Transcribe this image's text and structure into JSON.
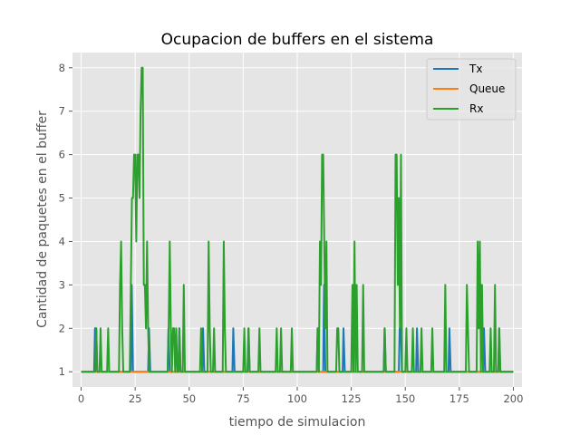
{
  "chart_data": {
    "type": "line",
    "title": "Ocupacion de buffers en el sistema",
    "xlabel": "tiempo de simulacion",
    "ylabel": "Cantidad de paquetes en el buffer",
    "xlim": [
      -4,
      204
    ],
    "ylim": [
      0.65,
      8.35
    ],
    "xticks": [
      0,
      25,
      50,
      75,
      100,
      125,
      150,
      175,
      200
    ],
    "yticks": [
      1,
      2,
      3,
      4,
      5,
      6,
      7,
      8
    ],
    "grid": true,
    "legend": "top-right",
    "series": [
      {
        "name": "Tx",
        "color": "#1f77b4",
        "points": [
          [
            0,
            1
          ],
          [
            6,
            1
          ],
          [
            6.4,
            2
          ],
          [
            7,
            2
          ],
          [
            7.4,
            1
          ],
          [
            23,
            1
          ],
          [
            23.4,
            3
          ],
          [
            24,
            1
          ],
          [
            31,
            1
          ],
          [
            31.4,
            2
          ],
          [
            32,
            1
          ],
          [
            40,
            1
          ],
          [
            40.4,
            2
          ],
          [
            41,
            1
          ],
          [
            45,
            1
          ],
          [
            45.4,
            2
          ],
          [
            46,
            1
          ],
          [
            56,
            1
          ],
          [
            56.4,
            2
          ],
          [
            57,
            1
          ],
          [
            70,
            1
          ],
          [
            70.4,
            2
          ],
          [
            71,
            1
          ],
          [
            77,
            1
          ],
          [
            77.4,
            2
          ],
          [
            78,
            1
          ],
          [
            109,
            1
          ],
          [
            109.4,
            2
          ],
          [
            110,
            1
          ],
          [
            112,
            1
          ],
          [
            112.4,
            3
          ],
          [
            113,
            1
          ],
          [
            121,
            1
          ],
          [
            121.4,
            2
          ],
          [
            122,
            1
          ],
          [
            140,
            1
          ],
          [
            140.4,
            2
          ],
          [
            141,
            1
          ],
          [
            147,
            1
          ],
          [
            147.4,
            2
          ],
          [
            148,
            2
          ],
          [
            148.4,
            1
          ],
          [
            155,
            1
          ],
          [
            155.4,
            2
          ],
          [
            156,
            1
          ],
          [
            170,
            1
          ],
          [
            170.4,
            2
          ],
          [
            171,
            1
          ],
          [
            186,
            1
          ],
          [
            186.4,
            2
          ],
          [
            187,
            1
          ],
          [
            193,
            1
          ],
          [
            193.4,
            2
          ],
          [
            194,
            1
          ],
          [
            200,
            1
          ]
        ]
      },
      {
        "name": "Queue",
        "color": "#ff7f0e",
        "points": [
          [
            0,
            1
          ],
          [
            200,
            1
          ]
        ]
      },
      {
        "name": "Rx",
        "color": "#2ca02c",
        "points": [
          [
            0,
            1
          ],
          [
            6.5,
            1
          ],
          [
            7,
            2
          ],
          [
            7.5,
            1
          ],
          [
            8.5,
            1
          ],
          [
            9,
            2
          ],
          [
            9.5,
            1
          ],
          [
            12,
            1
          ],
          [
            12.5,
            2
          ],
          [
            13,
            1
          ],
          [
            17.5,
            1
          ],
          [
            18,
            3
          ],
          [
            18.5,
            4
          ],
          [
            19,
            2
          ],
          [
            19.5,
            1
          ],
          [
            22.5,
            1
          ],
          [
            23,
            3
          ],
          [
            23.5,
            5
          ],
          [
            24,
            5
          ],
          [
            24.5,
            6
          ],
          [
            25,
            6
          ],
          [
            25.5,
            4
          ],
          [
            26,
            6
          ],
          [
            26.5,
            6
          ],
          [
            27,
            5
          ],
          [
            27.5,
            7
          ],
          [
            28,
            8
          ],
          [
            28.5,
            8
          ],
          [
            29,
            3
          ],
          [
            29.5,
            3
          ],
          [
            30,
            2
          ],
          [
            30.5,
            4
          ],
          [
            31,
            2
          ],
          [
            31.5,
            1
          ],
          [
            40,
            1
          ],
          [
            40.5,
            2
          ],
          [
            41,
            4
          ],
          [
            41.5,
            2
          ],
          [
            42,
            1
          ],
          [
            42.5,
            2
          ],
          [
            43,
            2
          ],
          [
            43.5,
            1
          ],
          [
            44,
            2
          ],
          [
            44.5,
            1
          ],
          [
            45,
            1
          ],
          [
            45.5,
            2
          ],
          [
            46,
            1
          ],
          [
            47,
            1
          ],
          [
            47.5,
            3
          ],
          [
            48,
            1
          ],
          [
            55,
            1
          ],
          [
            55.5,
            2
          ],
          [
            56,
            1
          ],
          [
            58.5,
            1
          ],
          [
            59,
            4
          ],
          [
            59.5,
            2
          ],
          [
            60,
            1
          ],
          [
            61,
            1
          ],
          [
            61.5,
            2
          ],
          [
            62,
            1
          ],
          [
            65.5,
            1
          ],
          [
            66,
            4
          ],
          [
            66.5,
            2
          ],
          [
            67,
            1
          ],
          [
            75,
            1
          ],
          [
            75.5,
            2
          ],
          [
            76,
            1
          ],
          [
            77,
            1
          ],
          [
            77.5,
            2
          ],
          [
            78,
            1
          ],
          [
            82,
            1
          ],
          [
            82.5,
            2
          ],
          [
            83,
            1
          ],
          [
            90,
            1
          ],
          [
            90.5,
            2
          ],
          [
            91,
            1
          ],
          [
            92,
            1
          ],
          [
            92.5,
            2
          ],
          [
            93,
            1
          ],
          [
            97,
            1
          ],
          [
            97.5,
            2
          ],
          [
            98,
            1
          ],
          [
            109,
            1
          ],
          [
            109.5,
            2
          ],
          [
            110,
            1
          ],
          [
            110.5,
            4
          ],
          [
            111,
            3
          ],
          [
            111.5,
            6
          ],
          [
            112,
            6
          ],
          [
            112.5,
            4
          ],
          [
            113,
            2
          ],
          [
            113.5,
            4
          ],
          [
            114,
            1
          ],
          [
            118,
            1
          ],
          [
            118.5,
            2
          ],
          [
            119,
            2
          ],
          [
            119.5,
            1
          ],
          [
            125,
            1
          ],
          [
            125.5,
            3
          ],
          [
            126,
            1
          ],
          [
            126.5,
            4
          ],
          [
            127,
            1
          ],
          [
            127.5,
            3
          ],
          [
            128,
            1
          ],
          [
            130,
            1
          ],
          [
            130.5,
            3
          ],
          [
            131,
            1
          ],
          [
            140,
            1
          ],
          [
            140.5,
            2
          ],
          [
            141,
            1
          ],
          [
            145,
            1
          ],
          [
            145.5,
            6
          ],
          [
            146,
            6
          ],
          [
            146.5,
            3
          ],
          [
            147,
            5
          ],
          [
            147.5,
            2
          ],
          [
            148,
            6
          ],
          [
            148.5,
            1
          ],
          [
            150,
            1
          ],
          [
            150.5,
            2
          ],
          [
            151,
            1
          ],
          [
            153,
            1
          ],
          [
            153.5,
            2
          ],
          [
            154,
            1
          ],
          [
            157,
            1
          ],
          [
            157.5,
            2
          ],
          [
            158,
            1
          ],
          [
            162,
            1
          ],
          [
            162.5,
            2
          ],
          [
            163,
            1
          ],
          [
            168,
            1
          ],
          [
            168.5,
            3
          ],
          [
            169,
            1
          ],
          [
            178,
            1
          ],
          [
            178.5,
            3
          ],
          [
            179,
            2
          ],
          [
            179.5,
            1
          ],
          [
            183,
            1
          ],
          [
            183.5,
            4
          ],
          [
            184,
            2
          ],
          [
            184.5,
            4
          ],
          [
            185,
            1
          ],
          [
            185.5,
            3
          ],
          [
            186,
            1
          ],
          [
            189,
            1
          ],
          [
            189.5,
            2
          ],
          [
            190,
            1
          ],
          [
            191,
            1
          ],
          [
            191.5,
            3
          ],
          [
            192,
            1
          ],
          [
            193,
            1
          ],
          [
            193.5,
            2
          ],
          [
            194,
            1
          ],
          [
            200,
            1
          ]
        ]
      }
    ]
  }
}
